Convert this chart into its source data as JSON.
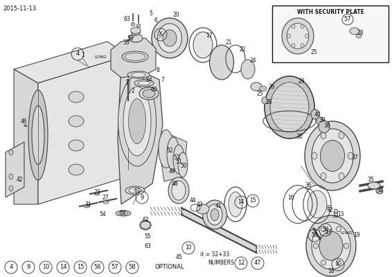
{
  "date": "2015-11-13",
  "bg_color": "#f5f5f0",
  "line_color": "#444444",
  "dark_color": "#111111",
  "gray1": "#c8c8c8",
  "gray2": "#d8d8d8",
  "gray3": "#e5e5e5",
  "gray4": "#b0b0b0",
  "fig_width": 5.66,
  "fig_height": 4.0,
  "dpi": 100,
  "inset_title": "WITH SECURITY PLATE",
  "optional_items": [
    "4",
    "9",
    "10",
    "14",
    "15",
    "56",
    "57",
    "58"
  ],
  "optional_label": "OPTIONAL",
  "bottom_note": "it = 32+33",
  "bottom_label": "NUMBERS",
  "bottom_circled": [
    "12",
    "47"
  ]
}
